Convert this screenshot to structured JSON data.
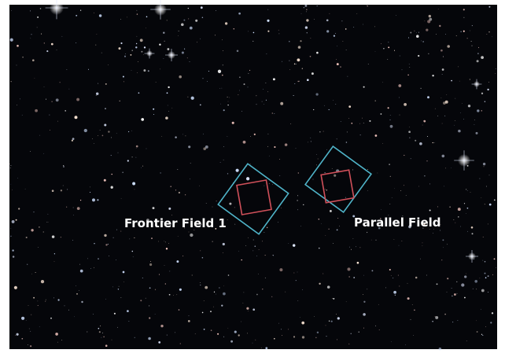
{
  "labels": {
    "frontier_field": "Frontier Field 1",
    "parallel_field": "Parallel Field"
  }
}
